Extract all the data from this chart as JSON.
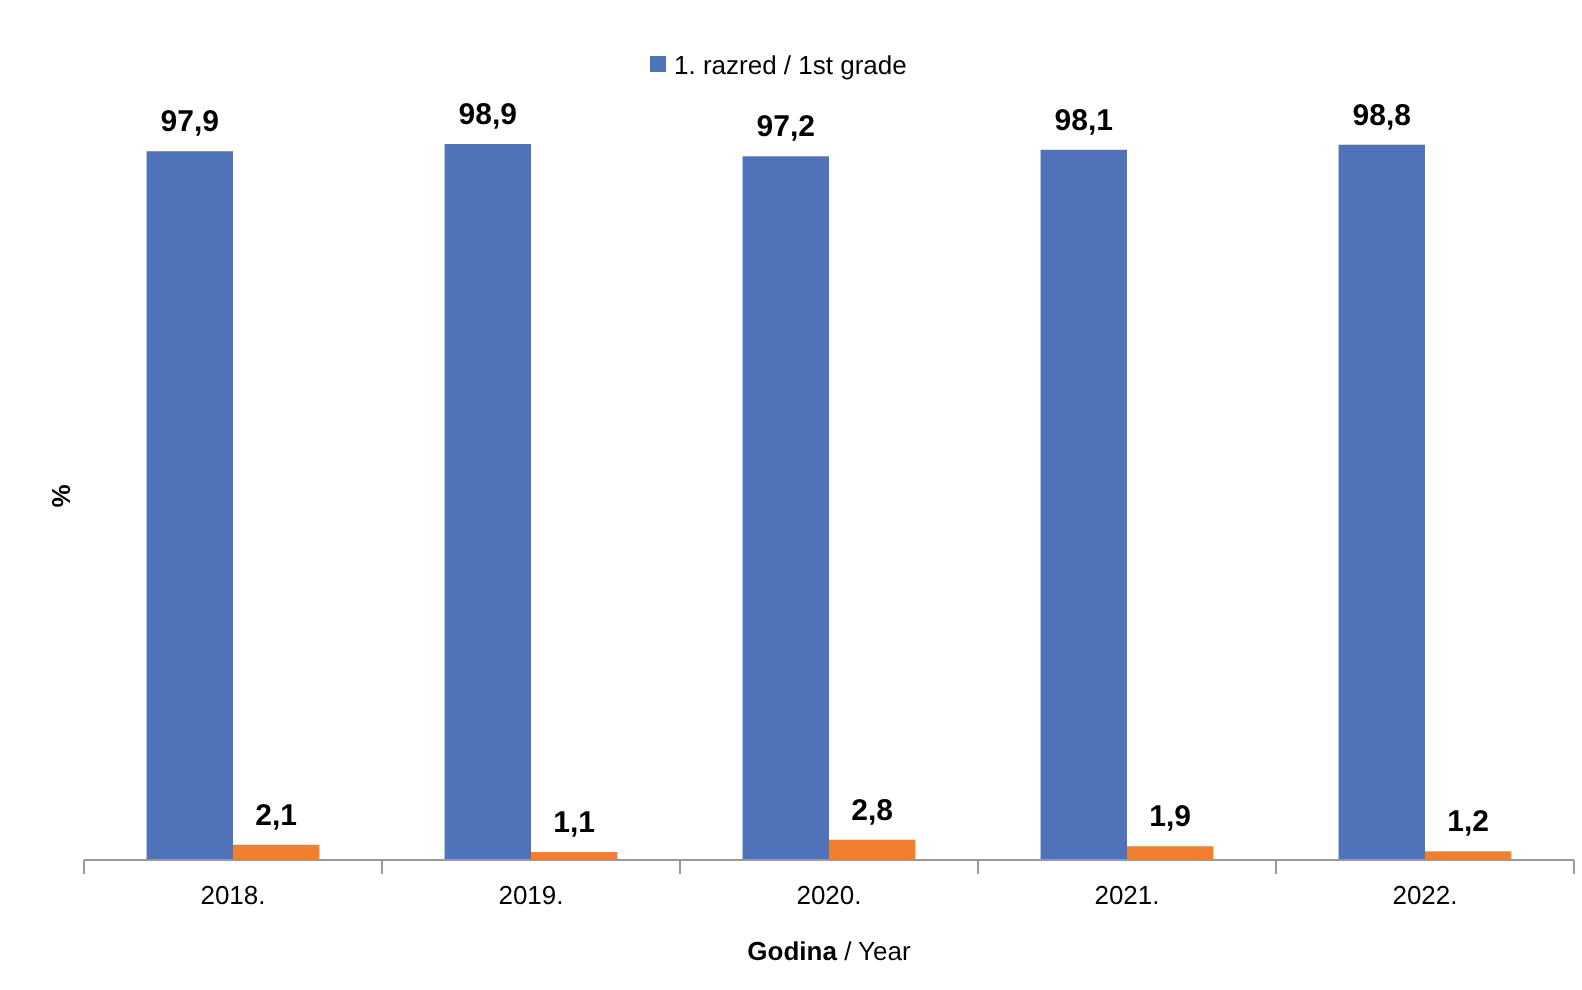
{
  "chart_data": {
    "type": "bar",
    "xlabel": "Godina / Year",
    "ylabel": "%",
    "categories": [
      "2018.",
      "2019.",
      "2020.",
      "2021.",
      "2022."
    ],
    "legend": "top",
    "series": [
      {
        "name": "1. razred / 1st grade",
        "color": "#4f72b8",
        "values": [
          97.9,
          98.9,
          97.2,
          98.1,
          98.8
        ],
        "value_labels": [
          "97,9",
          "98,9",
          "97,2",
          "98,1",
          "98,8"
        ]
      },
      {
        "color": "#f07f30",
        "values": [
          2.1,
          1.1,
          2.8,
          1.9,
          1.2
        ],
        "value_labels": [
          "2,1",
          "1,1",
          "2,8",
          "1,9",
          "1,2"
        ]
      }
    ]
  }
}
